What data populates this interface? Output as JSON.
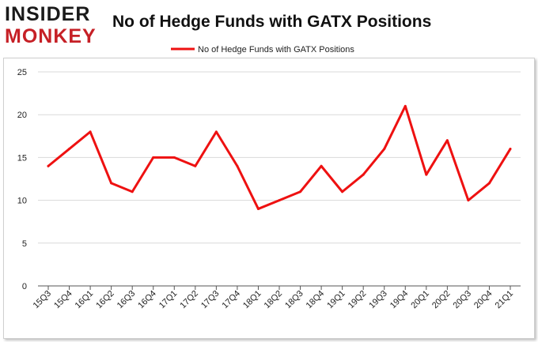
{
  "logo": {
    "line1": "INSIDER",
    "line2": "MONKEY"
  },
  "chart_data": {
    "type": "line",
    "title": "No of Hedge Funds with GATX Positions",
    "legend": "No of Hedge Funds with GATX Positions",
    "legend_position": "top-center",
    "xlabel": "",
    "ylabel": "",
    "ylim": [
      0,
      25
    ],
    "yticks": [
      0,
      5,
      10,
      15,
      20,
      25
    ],
    "grid": true,
    "categories": [
      "15Q3",
      "15Q4",
      "16Q1",
      "16Q2",
      "16Q3",
      "16Q4",
      "17Q1",
      "17Q2",
      "17Q3",
      "17Q4",
      "18Q1",
      "18Q2",
      "18Q3",
      "18Q4",
      "19Q1",
      "19Q2",
      "19Q3",
      "19Q4",
      "20Q1",
      "20Q2",
      "20Q3",
      "20Q4",
      "21Q1"
    ],
    "series": [
      {
        "name": "No of Hedge Funds with GATX Positions",
        "values": [
          14,
          16,
          18,
          12,
          11,
          15,
          15,
          14,
          18,
          14,
          9,
          10,
          11,
          14,
          11,
          13,
          16,
          21,
          13,
          17,
          10,
          12,
          16
        ]
      }
    ],
    "colors": {
      "line": "#ee1111",
      "grid": "#d9d9d9",
      "axis": "#555555"
    }
  }
}
